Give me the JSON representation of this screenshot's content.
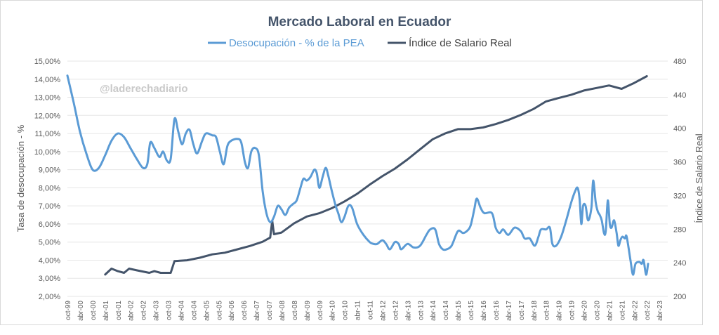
{
  "chart_data": {
    "type": "line",
    "title": "Mercado Laboral en Ecuador",
    "watermark": "@laderechadiario",
    "y_left_label": "Tasa de desocupación - %",
    "y_right_label": "Índice de Salario Real",
    "y_left_ticks": [
      "2,00%",
      "3,00%",
      "4,00%",
      "5,00%",
      "6,00%",
      "7,00%",
      "8,00%",
      "9,00%",
      "10,00%",
      "11,00%",
      "12,00%",
      "13,00%",
      "14,00%",
      "15,00%"
    ],
    "y_left_range": [
      2,
      15
    ],
    "y_right_ticks": [
      "200",
      "240",
      "280",
      "320",
      "360",
      "400",
      "440",
      "480"
    ],
    "y_right_range": [
      200,
      480
    ],
    "x_range": [
      1999.75,
      2023.58
    ],
    "x_ticks": [
      {
        "t": 1999.75,
        "label": "oct-99"
      },
      {
        "t": 2000.25,
        "label": "abr-00"
      },
      {
        "t": 2000.75,
        "label": "oct-00"
      },
      {
        "t": 2001.25,
        "label": "abr-01"
      },
      {
        "t": 2001.75,
        "label": "oct-01"
      },
      {
        "t": 2002.25,
        "label": "abr-02"
      },
      {
        "t": 2002.75,
        "label": "oct-02"
      },
      {
        "t": 2003.25,
        "label": "abr-03"
      },
      {
        "t": 2003.75,
        "label": "oct-03"
      },
      {
        "t": 2004.25,
        "label": "abr-04"
      },
      {
        "t": 2004.75,
        "label": "oct-04"
      },
      {
        "t": 2005.25,
        "label": "abr-05"
      },
      {
        "t": 2005.75,
        "label": "oct-05"
      },
      {
        "t": 2006.25,
        "label": "abr-06"
      },
      {
        "t": 2006.75,
        "label": "oct-06"
      },
      {
        "t": 2007.25,
        "label": "abr-07"
      },
      {
        "t": 2007.75,
        "label": "oct-07"
      },
      {
        "t": 2008.25,
        "label": "abr-08"
      },
      {
        "t": 2008.75,
        "label": "oct-08"
      },
      {
        "t": 2009.25,
        "label": "abr-09"
      },
      {
        "t": 2009.75,
        "label": "oct-09"
      },
      {
        "t": 2010.25,
        "label": "abr-10"
      },
      {
        "t": 2010.75,
        "label": "oct-10"
      },
      {
        "t": 2011.25,
        "label": "abr-11"
      },
      {
        "t": 2011.75,
        "label": "oct-11"
      },
      {
        "t": 2012.25,
        "label": "abr-12"
      },
      {
        "t": 2012.75,
        "label": "oct-12"
      },
      {
        "t": 2013.25,
        "label": "abr-13"
      },
      {
        "t": 2013.75,
        "label": "oct-13"
      },
      {
        "t": 2014.25,
        "label": "abr-14"
      },
      {
        "t": 2014.75,
        "label": "oct-14"
      },
      {
        "t": 2015.25,
        "label": "abr-15"
      },
      {
        "t": 2015.75,
        "label": "oct-15"
      },
      {
        "t": 2016.25,
        "label": "abr-16"
      },
      {
        "t": 2016.75,
        "label": "oct-16"
      },
      {
        "t": 2017.25,
        "label": "abr-17"
      },
      {
        "t": 2017.75,
        "label": "oct-17"
      },
      {
        "t": 2018.25,
        "label": "abr-18"
      },
      {
        "t": 2018.75,
        "label": "oct-18"
      },
      {
        "t": 2019.25,
        "label": "abr-19"
      },
      {
        "t": 2019.75,
        "label": "oct-19"
      },
      {
        "t": 2020.25,
        "label": "abr-20"
      },
      {
        "t": 2020.75,
        "label": "oct-20"
      },
      {
        "t": 2021.25,
        "label": "abr-21"
      },
      {
        "t": 2021.75,
        "label": "oct-21"
      },
      {
        "t": 2022.25,
        "label": "abr-22"
      },
      {
        "t": 2022.75,
        "label": "oct-22"
      },
      {
        "t": 2023.25,
        "label": "abr-23"
      }
    ],
    "legend_position": "top-center",
    "grid": true,
    "series": [
      {
        "name": "Desocupación - % de la PEA",
        "axis": "left",
        "color": "#5b9bd5",
        "points": [
          [
            1999.75,
            14.2
          ],
          [
            2000.0,
            12.7
          ],
          [
            2000.25,
            11.1
          ],
          [
            2000.5,
            9.9
          ],
          [
            2000.75,
            9.0
          ],
          [
            2001.0,
            9.1
          ],
          [
            2001.25,
            9.8
          ],
          [
            2001.5,
            10.6
          ],
          [
            2001.75,
            11.0
          ],
          [
            2002.0,
            10.8
          ],
          [
            2002.25,
            10.2
          ],
          [
            2002.5,
            9.6
          ],
          [
            2002.75,
            9.1
          ],
          [
            2002.92,
            9.3
          ],
          [
            2003.04,
            10.5
          ],
          [
            2003.2,
            10.2
          ],
          [
            2003.4,
            9.7
          ],
          [
            2003.55,
            10.0
          ],
          [
            2003.7,
            9.5
          ],
          [
            2003.85,
            9.6
          ],
          [
            2004.0,
            11.8
          ],
          [
            2004.15,
            11.1
          ],
          [
            2004.3,
            10.4
          ],
          [
            2004.45,
            11.0
          ],
          [
            2004.6,
            11.2
          ],
          [
            2004.75,
            10.4
          ],
          [
            2004.9,
            9.9
          ],
          [
            2005.1,
            10.6
          ],
          [
            2005.25,
            11.0
          ],
          [
            2005.5,
            10.9
          ],
          [
            2005.65,
            10.8
          ],
          [
            2005.8,
            10.0
          ],
          [
            2005.95,
            9.3
          ],
          [
            2006.1,
            10.3
          ],
          [
            2006.25,
            10.6
          ],
          [
            2006.5,
            10.7
          ],
          [
            2006.65,
            10.5
          ],
          [
            2006.8,
            9.4
          ],
          [
            2006.92,
            9.1
          ],
          [
            2007.05,
            10.0
          ],
          [
            2007.2,
            10.2
          ],
          [
            2007.35,
            9.8
          ],
          [
            2007.5,
            7.8
          ],
          [
            2007.65,
            6.6
          ],
          [
            2007.8,
            6.1
          ],
          [
            2007.95,
            6.4
          ],
          [
            2008.1,
            7.0
          ],
          [
            2008.25,
            6.8
          ],
          [
            2008.4,
            6.5
          ],
          [
            2008.55,
            6.9
          ],
          [
            2008.7,
            7.1
          ],
          [
            2008.85,
            7.3
          ],
          [
            2009.0,
            8.0
          ],
          [
            2009.12,
            8.5
          ],
          [
            2009.25,
            8.4
          ],
          [
            2009.4,
            8.6
          ],
          [
            2009.55,
            9.0
          ],
          [
            2009.65,
            8.8
          ],
          [
            2009.75,
            8.0
          ],
          [
            2009.88,
            8.6
          ],
          [
            2010.0,
            9.1
          ],
          [
            2010.1,
            8.7
          ],
          [
            2010.25,
            7.8
          ],
          [
            2010.4,
            7.0
          ],
          [
            2010.5,
            6.6
          ],
          [
            2010.62,
            6.1
          ],
          [
            2010.75,
            6.4
          ],
          [
            2010.9,
            7.0
          ],
          [
            2011.05,
            6.9
          ],
          [
            2011.25,
            6.0
          ],
          [
            2011.5,
            5.4
          ],
          [
            2011.75,
            5.0
          ],
          [
            2011.9,
            4.9
          ],
          [
            2012.05,
            4.9
          ],
          [
            2012.25,
            5.1
          ],
          [
            2012.4,
            4.9
          ],
          [
            2012.55,
            4.6
          ],
          [
            2012.75,
            5.0
          ],
          [
            2012.9,
            4.9
          ],
          [
            2013.0,
            4.6
          ],
          [
            2013.25,
            4.9
          ],
          [
            2013.5,
            4.7
          ],
          [
            2013.75,
            4.8
          ],
          [
            2014.0,
            5.4
          ],
          [
            2014.15,
            5.7
          ],
          [
            2014.35,
            5.7
          ],
          [
            2014.5,
            4.9
          ],
          [
            2014.65,
            4.6
          ],
          [
            2014.8,
            4.6
          ],
          [
            2015.0,
            4.8
          ],
          [
            2015.25,
            5.6
          ],
          [
            2015.45,
            5.5
          ],
          [
            2015.6,
            5.6
          ],
          [
            2015.75,
            5.9
          ],
          [
            2015.9,
            6.8
          ],
          [
            2016.0,
            7.4
          ],
          [
            2016.15,
            6.9
          ],
          [
            2016.3,
            6.6
          ],
          [
            2016.6,
            6.6
          ],
          [
            2016.75,
            5.8
          ],
          [
            2016.9,
            5.5
          ],
          [
            2017.05,
            5.7
          ],
          [
            2017.25,
            5.4
          ],
          [
            2017.5,
            5.8
          ],
          [
            2017.75,
            5.6
          ],
          [
            2017.9,
            5.2
          ],
          [
            2018.1,
            5.2
          ],
          [
            2018.3,
            4.8
          ],
          [
            2018.45,
            5.3
          ],
          [
            2018.55,
            5.7
          ],
          [
            2018.75,
            5.7
          ],
          [
            2018.9,
            5.8
          ],
          [
            2019.0,
            4.9
          ],
          [
            2019.15,
            4.8
          ],
          [
            2019.35,
            5.3
          ],
          [
            2019.55,
            6.2
          ],
          [
            2019.75,
            7.2
          ],
          [
            2019.9,
            7.8
          ],
          [
            2020.0,
            8.0
          ],
          [
            2020.08,
            7.4
          ],
          [
            2020.15,
            6.0
          ],
          [
            2020.22,
            7.0
          ],
          [
            2020.32,
            7.0
          ],
          [
            2020.42,
            6.2
          ],
          [
            2020.55,
            6.9
          ],
          [
            2020.62,
            8.4
          ],
          [
            2020.72,
            7.2
          ],
          [
            2020.8,
            6.7
          ],
          [
            2020.88,
            6.5
          ],
          [
            2020.96,
            6.2
          ],
          [
            2021.05,
            5.5
          ],
          [
            2021.12,
            5.6
          ],
          [
            2021.2,
            7.3
          ],
          [
            2021.28,
            6.0
          ],
          [
            2021.35,
            5.8
          ],
          [
            2021.45,
            6.2
          ],
          [
            2021.55,
            5.5
          ],
          [
            2021.62,
            4.8
          ],
          [
            2021.7,
            5.1
          ],
          [
            2021.78,
            5.3
          ],
          [
            2021.88,
            5.2
          ],
          [
            2021.95,
            5.3
          ],
          [
            2022.1,
            4.0
          ],
          [
            2022.2,
            3.2
          ],
          [
            2022.3,
            3.8
          ],
          [
            2022.45,
            3.9
          ],
          [
            2022.55,
            3.8
          ],
          [
            2022.62,
            4.0
          ],
          [
            2022.72,
            3.2
          ],
          [
            2022.8,
            3.8
          ]
        ]
      },
      {
        "name": "Índice de Salario Real",
        "axis": "right",
        "color": "#44546a",
        "points": [
          [
            2001.25,
            226
          ],
          [
            2001.5,
            233
          ],
          [
            2001.75,
            230
          ],
          [
            2002.0,
            228
          ],
          [
            2002.2,
            233
          ],
          [
            2002.5,
            231
          ],
          [
            2003.0,
            228
          ],
          [
            2003.2,
            230
          ],
          [
            2003.45,
            228
          ],
          [
            2003.85,
            228
          ],
          [
            2004.0,
            242
          ],
          [
            2004.5,
            243
          ],
          [
            2005.0,
            246
          ],
          [
            2005.5,
            250
          ],
          [
            2006.0,
            252
          ],
          [
            2006.5,
            256
          ],
          [
            2007.0,
            260
          ],
          [
            2007.5,
            265
          ],
          [
            2007.8,
            270
          ],
          [
            2007.88,
            290
          ],
          [
            2007.95,
            274
          ],
          [
            2008.25,
            276
          ],
          [
            2008.75,
            287
          ],
          [
            2009.25,
            295
          ],
          [
            2009.75,
            299
          ],
          [
            2010.25,
            305
          ],
          [
            2010.75,
            313
          ],
          [
            2011.25,
            322
          ],
          [
            2011.75,
            333
          ],
          [
            2012.25,
            343
          ],
          [
            2012.75,
            352
          ],
          [
            2013.25,
            363
          ],
          [
            2013.75,
            375
          ],
          [
            2014.25,
            387
          ],
          [
            2014.75,
            394
          ],
          [
            2015.25,
            399
          ],
          [
            2015.75,
            399
          ],
          [
            2016.25,
            401
          ],
          [
            2016.75,
            405
          ],
          [
            2017.25,
            410
          ],
          [
            2017.75,
            416
          ],
          [
            2018.25,
            423
          ],
          [
            2018.75,
            432
          ],
          [
            2019.25,
            436
          ],
          [
            2019.75,
            440
          ],
          [
            2020.25,
            445
          ],
          [
            2020.75,
            448
          ],
          [
            2021.25,
            451
          ],
          [
            2021.75,
            447
          ],
          [
            2022.25,
            454
          ],
          [
            2022.75,
            462
          ]
        ]
      }
    ]
  }
}
